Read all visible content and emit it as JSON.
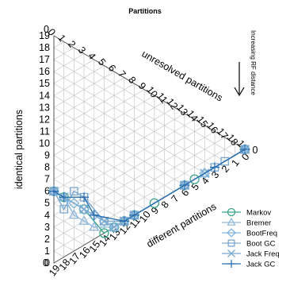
{
  "chart_data": {
    "type": "scatter",
    "subtype": "ternary",
    "title": "Partitions",
    "note": "Increasing RF distance",
    "axes": {
      "identical": {
        "label": "identical partitions",
        "range": [
          0,
          19
        ]
      },
      "unresolved": {
        "label": "unresolved partitions",
        "range": [
          0,
          19
        ]
      },
      "different": {
        "label": "different partitions",
        "range": [
          0,
          19
        ]
      }
    },
    "ticks": {
      "left": [
        "0",
        "1",
        "2",
        "3",
        "4",
        "5",
        "6",
        "7",
        "8",
        "9",
        "10",
        "11",
        "12",
        "13",
        "14",
        "15",
        "16",
        "17",
        "18",
        "19"
      ],
      "top": [
        "0",
        "1",
        "2",
        "3",
        "4",
        "5",
        "6",
        "7",
        "8",
        "9",
        "10",
        "11",
        "12",
        "13",
        "14",
        "15",
        "16",
        "17",
        "18",
        "19"
      ],
      "bottom": [
        "0",
        "1",
        "2",
        "3",
        "4",
        "5",
        "6",
        "7",
        "8",
        "9",
        "10",
        "11",
        "12",
        "13",
        "14",
        "15",
        "16",
        "17",
        "18",
        "19"
      ]
    },
    "corner_labels": {
      "top_left": "0",
      "right": "0",
      "bottom": "0"
    },
    "grid": true,
    "legend_position": "bottom-right",
    "colors": {
      "Markov": "#3aa58a",
      "Bremer": "#8fb8dc",
      "BootFreq": "#7fb3da",
      "Boot GC": "#7aa8d0",
      "Jack Freq": "#79a9d3",
      "Jack GC": "#2c6fb0",
      "grid": "#c8c8c8",
      "axis": "#555555"
    },
    "series": [
      {
        "name": "Markov",
        "marker": "circle",
        "points": [
          [
            13,
            0,
            6
          ],
          [
            13,
            1,
            5
          ],
          [
            13,
            3,
            3
          ],
          [
            14,
            5,
            0
          ],
          [
            13,
            6,
            0
          ],
          [
            12,
            7,
            0
          ],
          [
            11,
            8,
            0
          ],
          [
            9,
            10,
            0
          ],
          [
            6,
            13,
            0
          ],
          [
            5,
            14,
            0
          ],
          [
            0,
            19,
            0
          ]
        ]
      },
      {
        "name": "Bremer",
        "marker": "triangle",
        "points": [
          [
            13,
            0,
            6
          ],
          [
            13,
            1,
            5
          ],
          [
            14,
            2,
            3
          ],
          [
            14,
            3,
            2
          ],
          [
            14,
            4,
            1
          ],
          [
            13,
            6,
            0
          ],
          [
            12,
            7,
            0
          ],
          [
            11,
            8,
            0
          ],
          [
            6,
            13,
            0
          ],
          [
            4,
            15,
            0
          ],
          [
            0,
            19,
            0
          ]
        ]
      },
      {
        "name": "BootFreq",
        "marker": "diamond",
        "points": [
          [
            13,
            0,
            6
          ],
          [
            13,
            2,
            4
          ],
          [
            13,
            3,
            3
          ],
          [
            13,
            4,
            2
          ],
          [
            13,
            5,
            1
          ],
          [
            13,
            6,
            0
          ],
          [
            12,
            7,
            0
          ],
          [
            11,
            8,
            0
          ],
          [
            6,
            13,
            0
          ],
          [
            4,
            15,
            0
          ],
          [
            0,
            19,
            0
          ]
        ]
      },
      {
        "name": "Boot GC",
        "marker": "square",
        "points": [
          [
            13,
            0,
            6
          ],
          [
            14,
            1,
            4
          ],
          [
            12,
            2,
            5
          ],
          [
            12,
            3,
            4
          ],
          [
            13,
            5,
            1
          ],
          [
            12,
            7,
            0
          ],
          [
            11,
            8,
            0
          ],
          [
            6,
            13,
            0
          ],
          [
            3,
            16,
            0
          ],
          [
            2,
            17,
            0
          ],
          [
            0,
            19,
            0
          ]
        ]
      },
      {
        "name": "Jack Freq",
        "marker": "cross",
        "points": [
          [
            13,
            0,
            6
          ],
          [
            13,
            1,
            5
          ],
          [
            13,
            3,
            3
          ],
          [
            13,
            5,
            1
          ],
          [
            13,
            6,
            0
          ],
          [
            12,
            7,
            0
          ],
          [
            11,
            8,
            0
          ],
          [
            6,
            13,
            0
          ],
          [
            4,
            15,
            0
          ],
          [
            0,
            19,
            0
          ]
        ]
      },
      {
        "name": "Jack GC",
        "marker": "plus",
        "points": [
          [
            13,
            0,
            6
          ],
          [
            13,
            1,
            5
          ],
          [
            12,
            3,
            4
          ],
          [
            13,
            4,
            2
          ],
          [
            12,
            7,
            0
          ],
          [
            11,
            8,
            0
          ],
          [
            6,
            13,
            0
          ],
          [
            3,
            16,
            0
          ],
          [
            0,
            19,
            0
          ]
        ]
      }
    ],
    "point_order": [
      "identical",
      "unresolved",
      "different"
    ]
  }
}
